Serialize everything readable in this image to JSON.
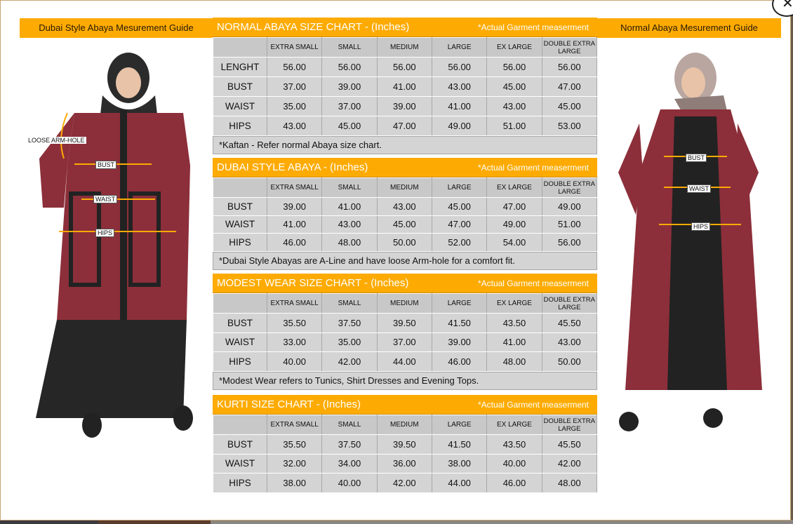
{
  "left_guide": {
    "title": "Dubai Style Abaya Mesurement Guide",
    "labels": [
      "LOOSE ARM-HOLE",
      "BUST",
      "WAIST",
      "HIPS"
    ]
  },
  "right_guide": {
    "title": "Normal Abaya Mesurement Guide",
    "labels": [
      "BUST",
      "WAIST",
      "HIPS"
    ]
  },
  "close_icon": "close-icon",
  "colors": {
    "accent": "#fdab03",
    "table_bg": "#d4d4d4",
    "abaya_maroon": "#8c2f3a"
  },
  "sizes": [
    "EXTRA SMALL",
    "SMALL",
    "MEDIUM",
    "LARGE",
    "EX LARGE",
    "DOUBLE EXTRA LARGE"
  ],
  "sections": [
    {
      "title": "NORMAL ABAYA SIZE CHART - (Inches)",
      "note_right": "*Actual Garment measerment",
      "rows": [
        [
          "LENGHT",
          "56.00",
          "56.00",
          "56.00",
          "56.00",
          "56.00",
          "56.00"
        ],
        [
          "BUST",
          "37.00",
          "39.00",
          "41.00",
          "43.00",
          "45.00",
          "47.00"
        ],
        [
          "WAIST",
          "35.00",
          "37.00",
          "39.00",
          "41.00",
          "43.00",
          "45.00"
        ],
        [
          "HIPS",
          "43.00",
          "45.00",
          "47.00",
          "49.00",
          "51.00",
          "53.00"
        ]
      ],
      "footnote": "*Kaftan - Refer normal Abaya size chart."
    },
    {
      "title": "DUBAI STYLE ABAYA - (Inches)",
      "note_right": "*Actual Garment measerment",
      "rows": [
        [
          "BUST",
          "39.00",
          "41.00",
          "43.00",
          "45.00",
          "47.00",
          "49.00"
        ],
        [
          "WAIST",
          "41.00",
          "43.00",
          "45.00",
          "47.00",
          "49.00",
          "51.00"
        ],
        [
          "HIPS",
          "46.00",
          "48.00",
          "50.00",
          "52.00",
          "54.00",
          "56.00"
        ]
      ],
      "footnote": "*Dubai Style Abayas are A-Line and have loose Arm-hole for a comfort fit."
    },
    {
      "title": "MODEST WEAR SIZE CHART - (Inches)",
      "note_right": "*Actual Garment measerment",
      "rows": [
        [
          "BUST",
          "35.50",
          "37.50",
          "39.50",
          "41.50",
          "43.50",
          "45.50"
        ],
        [
          "WAIST",
          "33.00",
          "35.00",
          "37.00",
          "39.00",
          "41.00",
          "43.00"
        ],
        [
          "HIPS",
          "40.00",
          "42.00",
          "44.00",
          "46.00",
          "48.00",
          "50.00"
        ]
      ],
      "footnote": "*Modest Wear refers to Tunics, Shirt Dresses and Evening Tops."
    },
    {
      "title": "KURTI SIZE CHART - (Inches)",
      "note_right": "*Actual Garment measerment",
      "rows": [
        [
          "BUST",
          "35.50",
          "37.50",
          "39.50",
          "41.50",
          "43.50",
          "45.50"
        ],
        [
          "WAIST",
          "32.00",
          "34.00",
          "36.00",
          "38.00",
          "40.00",
          "42.00"
        ],
        [
          "HIPS",
          "38.00",
          "40.00",
          "42.00",
          "44.00",
          "46.00",
          "48.00"
        ]
      ],
      "footnote": ""
    }
  ]
}
